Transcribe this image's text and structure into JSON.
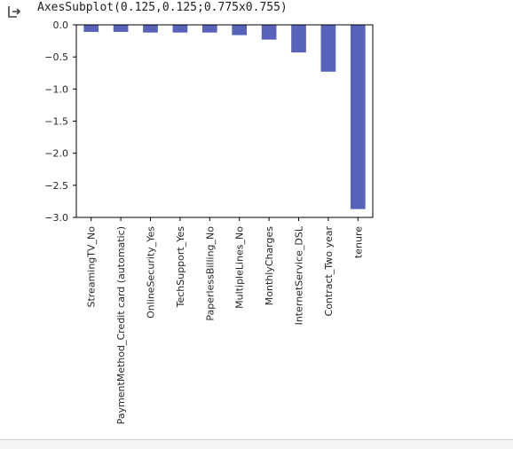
{
  "output": {
    "repr_text": "AxesSubplot(0.125,0.125;0.775x0.755)"
  },
  "colors": {
    "bar": "#5763bb",
    "axis": "#000000",
    "text": "#262626"
  },
  "chart_data": {
    "type": "bar",
    "categories": [
      "StreamingTV_No",
      "PaymentMethod_Credit card (automatic)",
      "OnlineSecurity_Yes",
      "TechSupport_Yes",
      "PaperlessBilling_No",
      "MultipleLines_No",
      "MonthlyCharges",
      "InternetService_DSL",
      "Contract_Two year",
      "tenure"
    ],
    "values": [
      -0.11,
      -0.11,
      -0.12,
      -0.12,
      -0.12,
      -0.16,
      -0.23,
      -0.43,
      -0.73,
      -2.87
    ],
    "ylim": [
      -3.0,
      0.0
    ],
    "yticks": [
      0.0,
      -0.5,
      -1.0,
      -1.5,
      -2.0,
      -2.5,
      -3.0
    ],
    "ytick_labels": [
      "0.0",
      "−0.5",
      "−1.0",
      "−1.5",
      "−2.0",
      "−2.5",
      "−3.0"
    ],
    "title": "",
    "xlabel": "",
    "ylabel": "",
    "grid": false,
    "legend": false
  }
}
